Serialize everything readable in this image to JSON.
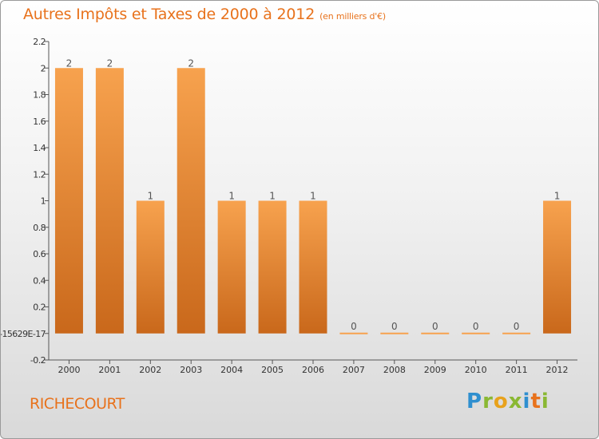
{
  "title": "Autres Impôts et Taxes de 2000 à 2012",
  "subtitle": "(en milliers d'€)",
  "commune": "RICHECOURT",
  "logo": {
    "letters": [
      "P",
      "r",
      "o",
      "x",
      "i",
      "t",
      "i"
    ],
    "colors": [
      "#2f8fcf",
      "#8ab833",
      "#e8a21c",
      "#8ab833",
      "#2f8fcf",
      "#e8721c",
      "#8ab833"
    ]
  },
  "colors": {
    "bar_top": "#f7a24e",
    "bar_bottom": "#c9681b",
    "accent": "#e8721c",
    "axis": "#555555"
  },
  "chart_data": {
    "type": "bar",
    "title": "Autres Impôts et Taxes de 2000 à 2012",
    "xlabel": "",
    "ylabel": "",
    "ylim": [
      -0.2,
      2.2
    ],
    "grid": false,
    "categories": [
      "2000",
      "2001",
      "2002",
      "2003",
      "2004",
      "2005",
      "2006",
      "2007",
      "2008",
      "2009",
      "2010",
      "2011",
      "2012"
    ],
    "values": [
      2,
      2,
      1,
      2,
      1,
      1,
      1,
      0,
      0,
      0,
      0,
      0,
      1
    ],
    "data_labels": [
      "2",
      "2",
      "1",
      "2",
      "1",
      "1",
      "1",
      "0",
      "0",
      "0",
      "0",
      "0",
      "1"
    ],
    "yticks": [
      {
        "value": 2.2,
        "label": "2.2"
      },
      {
        "value": 2.0,
        "label": "2"
      },
      {
        "value": 1.8,
        "label": "1.8"
      },
      {
        "value": 1.6,
        "label": "1.6"
      },
      {
        "value": 1.4,
        "label": "1.4"
      },
      {
        "value": 1.2,
        "label": "1.2"
      },
      {
        "value": 1.0,
        "label": "1"
      },
      {
        "value": 0.8,
        "label": "0.8"
      },
      {
        "value": 0.6,
        "label": "0.6"
      },
      {
        "value": 0.4,
        "label": "0.4"
      },
      {
        "value": 0.2,
        "label": "0.2"
      },
      {
        "value": 0.0,
        "label": "-15629E-17"
      },
      {
        "value": -0.2,
        "label": "-0.2"
      }
    ]
  }
}
